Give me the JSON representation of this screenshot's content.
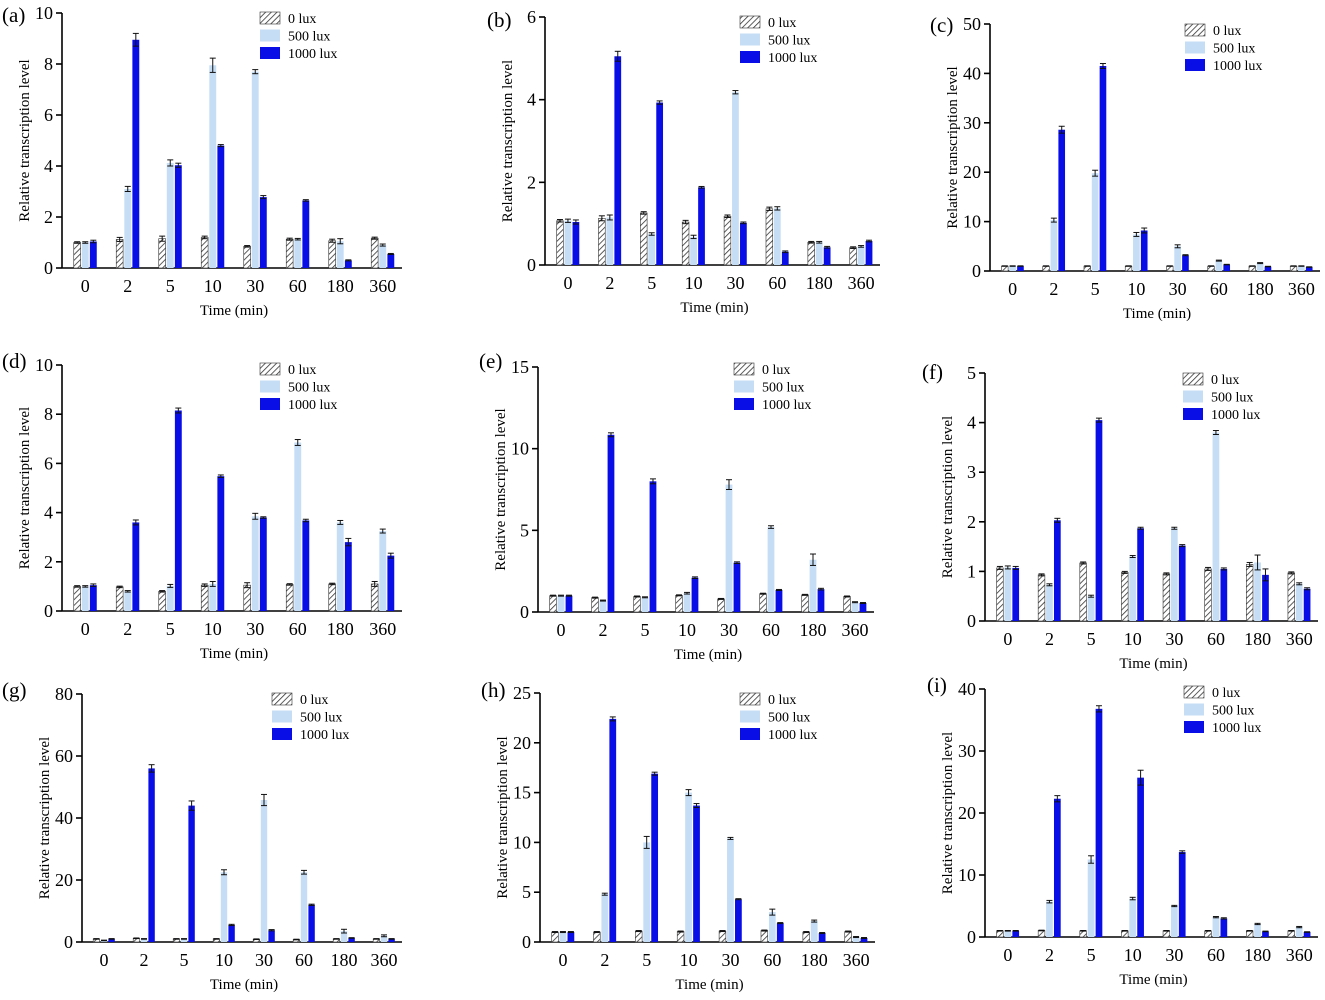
{
  "colors": {
    "lux0_fill": "#ffffff",
    "lux0_hatch": "#333333",
    "lux500": "#c5ddf5",
    "lux1000": "#0a0ee6",
    "axis": "#000000"
  },
  "chart_data": [
    {
      "panel": "(a)",
      "type": "bar",
      "xlabel": "Time (min)",
      "ylabel": "Relative transcription level",
      "categories": [
        "0",
        "2",
        "5",
        "10",
        "30",
        "60",
        "180",
        "360"
      ],
      "ylim": [
        0,
        10
      ],
      "yticks": [
        0,
        2,
        4,
        6,
        8,
        10
      ],
      "legend_position": "top-right",
      "series": [
        {
          "name": "0 lux",
          "values": [
            1.0,
            1.12,
            1.15,
            1.2,
            0.85,
            1.13,
            1.07,
            1.17
          ],
          "errors": [
            0.03,
            0.08,
            0.1,
            0.05,
            0.03,
            0.04,
            0.06,
            0.04
          ]
        },
        {
          "name": "500 lux",
          "values": [
            1.0,
            3.1,
            4.12,
            7.95,
            7.7,
            1.13,
            1.05,
            0.9
          ],
          "errors": [
            0.03,
            0.1,
            0.12,
            0.28,
            0.08,
            0.03,
            0.1,
            0.04
          ]
        },
        {
          "name": "1000 lux",
          "values": [
            1.04,
            8.95,
            4.03,
            4.8,
            2.78,
            2.65,
            0.3,
            0.55
          ],
          "errors": [
            0.05,
            0.25,
            0.08,
            0.04,
            0.06,
            0.03,
            0.02,
            0.02
          ]
        }
      ]
    },
    {
      "panel": "(b)",
      "type": "bar",
      "xlabel": "Time (min)",
      "ylabel": "Relative transcription level",
      "categories": [
        "0",
        "2",
        "5",
        "10",
        "30",
        "60",
        "180",
        "360"
      ],
      "ylim": [
        0,
        6
      ],
      "yticks": [
        0,
        2,
        4,
        6
      ],
      "legend_position": "top-right",
      "series": [
        {
          "name": "0 lux",
          "values": [
            1.07,
            1.13,
            1.26,
            1.04,
            1.18,
            1.36,
            0.55,
            0.42
          ],
          "errors": [
            0.03,
            0.06,
            0.03,
            0.04,
            0.03,
            0.04,
            0.02,
            0.02
          ]
        },
        {
          "name": "500 lux",
          "values": [
            1.07,
            1.15,
            0.75,
            0.68,
            4.18,
            1.37,
            0.55,
            0.45
          ],
          "errors": [
            0.04,
            0.06,
            0.03,
            0.04,
            0.04,
            0.04,
            0.02,
            0.02
          ]
        },
        {
          "name": "1000 lux",
          "values": [
            1.04,
            5.05,
            3.93,
            1.88,
            1.02,
            0.32,
            0.43,
            0.58
          ],
          "errors": [
            0.05,
            0.12,
            0.04,
            0.02,
            0.02,
            0.02,
            0.02,
            0.02
          ]
        }
      ]
    },
    {
      "panel": "(c)",
      "type": "bar",
      "xlabel": "Time (min)",
      "ylabel": "Relative transcription level",
      "categories": [
        "0",
        "2",
        "5",
        "10",
        "30",
        "60",
        "180",
        "360"
      ],
      "ylim": [
        0,
        50
      ],
      "yticks": [
        0,
        10,
        20,
        30,
        40,
        50
      ],
      "legend_position": "top-right",
      "series": [
        {
          "name": "0 lux",
          "values": [
            1.0,
            1.0,
            1.0,
            1.0,
            1.0,
            1.0,
            1.0,
            1.0
          ],
          "errors": [
            0.05,
            0.05,
            0.05,
            0.05,
            0.05,
            0.05,
            0.05,
            0.05
          ]
        },
        {
          "name": "500 lux",
          "values": [
            1.0,
            10.3,
            19.8,
            7.4,
            5.0,
            2.1,
            1.6,
            1.0
          ],
          "errors": [
            0.05,
            0.4,
            0.6,
            0.4,
            0.3,
            0.1,
            0.1,
            0.05
          ]
        },
        {
          "name": "1000 lux",
          "values": [
            1.0,
            28.6,
            41.5,
            8.2,
            3.2,
            1.3,
            0.9,
            0.8
          ],
          "errors": [
            0.05,
            0.7,
            0.5,
            0.5,
            0.1,
            0.05,
            0.05,
            0.05
          ]
        }
      ]
    },
    {
      "panel": "(d)",
      "type": "bar",
      "xlabel": "Time (min)",
      "ylabel": "Relative transcription level",
      "categories": [
        "0",
        "2",
        "5",
        "10",
        "30",
        "60",
        "180",
        "360"
      ],
      "ylim": [
        0,
        10
      ],
      "yticks": [
        0,
        2,
        4,
        6,
        8,
        10
      ],
      "legend_position": "top-right",
      "series": [
        {
          "name": "0 lux",
          "values": [
            1.0,
            0.98,
            0.8,
            1.05,
            1.05,
            1.08,
            1.1,
            1.1
          ],
          "errors": [
            0.03,
            0.03,
            0.03,
            0.05,
            0.1,
            0.03,
            0.03,
            0.1
          ]
        },
        {
          "name": "500 lux",
          "values": [
            1.0,
            0.8,
            1.02,
            1.1,
            3.85,
            6.85,
            3.6,
            3.25
          ],
          "errors": [
            0.03,
            0.03,
            0.06,
            0.1,
            0.12,
            0.12,
            0.08,
            0.08
          ]
        },
        {
          "name": "1000 lux",
          "values": [
            1.05,
            3.6,
            8.15,
            5.48,
            3.8,
            3.68,
            2.8,
            2.25
          ],
          "errors": [
            0.05,
            0.1,
            0.1,
            0.05,
            0.03,
            0.05,
            0.15,
            0.1
          ]
        }
      ]
    },
    {
      "panel": "(e)",
      "type": "bar",
      "xlabel": "Time (min)",
      "ylabel": "Relative transcription level",
      "categories": [
        "0",
        "2",
        "5",
        "10",
        "30",
        "60",
        "180",
        "360"
      ],
      "ylim": [
        0,
        15
      ],
      "yticks": [
        0,
        5,
        10,
        15
      ],
      "legend_position": "top-right",
      "series": [
        {
          "name": "0 lux",
          "values": [
            1.0,
            0.88,
            0.95,
            1.02,
            0.8,
            1.12,
            1.05,
            0.95
          ],
          "errors": [
            0.03,
            0.03,
            0.03,
            0.03,
            0.03,
            0.03,
            0.03,
            0.03
          ]
        },
        {
          "name": "500 lux",
          "values": [
            1.0,
            0.7,
            0.9,
            1.15,
            7.8,
            5.2,
            3.2,
            0.6
          ],
          "errors": [
            0.03,
            0.03,
            0.03,
            0.05,
            0.3,
            0.08,
            0.35,
            0.03
          ]
        },
        {
          "name": "1000 lux",
          "values": [
            1.0,
            10.85,
            8.0,
            2.1,
            3.02,
            1.35,
            1.4,
            0.55
          ],
          "errors": [
            0.03,
            0.12,
            0.15,
            0.05,
            0.05,
            0.03,
            0.05,
            0.03
          ]
        }
      ]
    },
    {
      "panel": "(f)",
      "type": "bar",
      "xlabel": "Time (min)",
      "ylabel": "Relative transcription level",
      "categories": [
        "0",
        "2",
        "5",
        "10",
        "30",
        "60",
        "180",
        "360"
      ],
      "ylim": [
        0,
        5
      ],
      "yticks": [
        0,
        1,
        2,
        3,
        4,
        5
      ],
      "legend_position": "top-right",
      "series": [
        {
          "name": "0 lux",
          "values": [
            1.07,
            0.93,
            1.17,
            0.98,
            0.95,
            1.05,
            1.14,
            0.97
          ],
          "errors": [
            0.03,
            0.02,
            0.02,
            0.02,
            0.02,
            0.03,
            0.04,
            0.02
          ]
        },
        {
          "name": "500 lux",
          "values": [
            1.08,
            0.73,
            0.5,
            1.3,
            1.87,
            3.8,
            1.18,
            0.75
          ],
          "errors": [
            0.03,
            0.02,
            0.02,
            0.02,
            0.02,
            0.04,
            0.15,
            0.02
          ]
        },
        {
          "name": "1000 lux",
          "values": [
            1.07,
            2.03,
            4.05,
            1.87,
            1.52,
            1.05,
            0.93,
            0.65
          ],
          "errors": [
            0.03,
            0.04,
            0.04,
            0.02,
            0.02,
            0.02,
            0.12,
            0.02
          ]
        }
      ]
    },
    {
      "panel": "(g)",
      "type": "bar",
      "xlabel": "Time (min)",
      "ylabel": "Relative transcription level",
      "categories": [
        "0",
        "2",
        "5",
        "10",
        "30",
        "60",
        "180",
        "360"
      ],
      "ylim": [
        0,
        80
      ],
      "yticks": [
        0,
        20,
        40,
        60,
        80
      ],
      "legend_position": "top-right",
      "series": [
        {
          "name": "0 lux",
          "values": [
            1.0,
            1.2,
            1.0,
            1.0,
            0.9,
            0.8,
            1.0,
            1.0
          ],
          "errors": [
            0.1,
            0.1,
            0.1,
            0.1,
            0.1,
            0.1,
            0.1,
            0.1
          ]
        },
        {
          "name": "500 lux",
          "values": [
            0.5,
            1.0,
            1.0,
            22.5,
            45.8,
            22.5,
            3.5,
            2.0
          ],
          "errors": [
            0.1,
            0.1,
            0.1,
            0.8,
            1.8,
            0.6,
            0.6,
            0.3
          ]
        },
        {
          "name": "1000 lux",
          "values": [
            1.0,
            56.0,
            44.0,
            5.5,
            3.8,
            12.0,
            1.3,
            1.0
          ],
          "errors": [
            0.1,
            1.2,
            1.5,
            0.2,
            0.2,
            0.2,
            0.1,
            0.1
          ]
        }
      ]
    },
    {
      "panel": "(h)",
      "type": "bar",
      "xlabel": "Time (min)",
      "ylabel": "Relative transcription level",
      "categories": [
        "0",
        "2",
        "5",
        "10",
        "30",
        "60",
        "180",
        "360"
      ],
      "ylim": [
        0,
        25
      ],
      "yticks": [
        0,
        5,
        10,
        15,
        20,
        25
      ],
      "legend_position": "top-right",
      "series": [
        {
          "name": "0 lux",
          "values": [
            1.0,
            1.0,
            1.1,
            1.05,
            1.1,
            1.15,
            1.0,
            1.05
          ],
          "errors": [
            0.05,
            0.05,
            0.05,
            0.05,
            0.05,
            0.05,
            0.05,
            0.05
          ]
        },
        {
          "name": "500 lux",
          "values": [
            1.0,
            4.8,
            10.0,
            15.0,
            10.4,
            3.0,
            2.1,
            0.5
          ],
          "errors": [
            0.05,
            0.1,
            0.6,
            0.3,
            0.1,
            0.3,
            0.1,
            0.05
          ]
        },
        {
          "name": "1000 lux",
          "values": [
            1.0,
            22.4,
            16.9,
            13.7,
            4.3,
            1.9,
            0.9,
            0.4
          ],
          "errors": [
            0.05,
            0.2,
            0.15,
            0.2,
            0.05,
            0.05,
            0.05,
            0.05
          ]
        }
      ]
    },
    {
      "panel": "(i)",
      "type": "bar",
      "xlabel": "Time (min)",
      "ylabel": "Relative transcription level",
      "categories": [
        "0",
        "2",
        "5",
        "10",
        "30",
        "60",
        "180",
        "360"
      ],
      "ylim": [
        0,
        40
      ],
      "yticks": [
        0,
        10,
        20,
        30,
        40
      ],
      "legend_position": "top-right",
      "series": [
        {
          "name": "0 lux",
          "values": [
            1.0,
            1.05,
            1.0,
            1.0,
            1.0,
            1.0,
            1.0,
            1.0
          ],
          "errors": [
            0.05,
            0.05,
            0.05,
            0.05,
            0.05,
            0.05,
            0.05,
            0.05
          ]
        },
        {
          "name": "500 lux",
          "values": [
            1.0,
            5.7,
            12.5,
            6.2,
            5.0,
            3.2,
            2.1,
            1.6
          ],
          "errors": [
            0.05,
            0.2,
            0.6,
            0.2,
            0.1,
            0.1,
            0.1,
            0.1
          ]
        },
        {
          "name": "1000 lux",
          "values": [
            1.0,
            22.3,
            36.8,
            25.7,
            13.7,
            3.0,
            0.9,
            0.8
          ],
          "errors": [
            0.05,
            0.5,
            0.5,
            1.2,
            0.2,
            0.1,
            0.05,
            0.05
          ]
        }
      ]
    }
  ]
}
